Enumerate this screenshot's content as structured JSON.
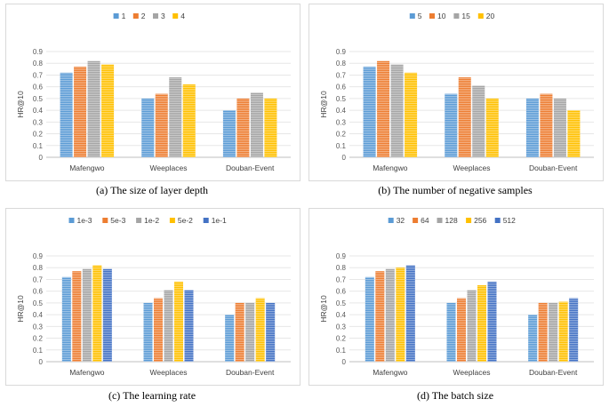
{
  "colors": {
    "palette": [
      "#5b9bd5",
      "#ed7d31",
      "#a5a5a5",
      "#ffc000",
      "#4472c4"
    ],
    "grid": "#e7e7e7",
    "axis": "#bfbfbf"
  },
  "chart_data": [
    {
      "type": "bar",
      "id": "a",
      "caption": "(a)  The size of layer depth",
      "ylabel": "HR@10",
      "xlabel": "",
      "ylim": [
        0,
        0.9
      ],
      "yticks": [
        "0",
        "0.1",
        "0.2",
        "0.3",
        "0.4",
        "0.5",
        "0.6",
        "0.7",
        "0.8",
        "0.9"
      ],
      "grid": true,
      "legend": "top-center",
      "categories": [
        "Mafengwo",
        "Weeplaces",
        "Douban-Event"
      ],
      "series": [
        {
          "name": "1",
          "values": [
            0.72,
            0.5,
            0.4
          ]
        },
        {
          "name": "2",
          "values": [
            0.77,
            0.54,
            0.5
          ]
        },
        {
          "name": "3",
          "values": [
            0.82,
            0.68,
            0.55
          ]
        },
        {
          "name": "4",
          "values": [
            0.79,
            0.62,
            0.5
          ]
        }
      ]
    },
    {
      "type": "bar",
      "id": "b",
      "caption": "(b)  The number of negative samples",
      "ylabel": "HR@10",
      "xlabel": "",
      "ylim": [
        0,
        0.9
      ],
      "yticks": [
        "0",
        "0.1",
        "0.2",
        "0.3",
        "0.4",
        "0.5",
        "0.6",
        "0.7",
        "0.8",
        "0.9"
      ],
      "grid": true,
      "legend": "top-center",
      "categories": [
        "Mafengwo",
        "Weeplaces",
        "Douban-Event"
      ],
      "series": [
        {
          "name": "5",
          "values": [
            0.77,
            0.54,
            0.5
          ]
        },
        {
          "name": "10",
          "values": [
            0.82,
            0.68,
            0.54
          ]
        },
        {
          "name": "15",
          "values": [
            0.79,
            0.61,
            0.5
          ]
        },
        {
          "name": "20",
          "values": [
            0.72,
            0.5,
            0.4
          ]
        }
      ]
    },
    {
      "type": "bar",
      "id": "c",
      "caption": "(c)  The learning rate",
      "ylabel": "HR@10",
      "xlabel": "",
      "ylim": [
        0,
        0.9
      ],
      "yticks": [
        "0",
        "0.1",
        "0.2",
        "0.3",
        "0.4",
        "0.5",
        "0.6",
        "0.7",
        "0.8",
        "0.9"
      ],
      "grid": true,
      "legend": "top-center",
      "categories": [
        "Mafengwo",
        "Weeplaces",
        "Douban-Event"
      ],
      "series": [
        {
          "name": "1e-3",
          "values": [
            0.72,
            0.5,
            0.4
          ]
        },
        {
          "name": "5e-3",
          "values": [
            0.77,
            0.54,
            0.5
          ]
        },
        {
          "name": "1e-2",
          "values": [
            0.79,
            0.61,
            0.5
          ]
        },
        {
          "name": "5e-2",
          "values": [
            0.82,
            0.68,
            0.54
          ]
        },
        {
          "name": "1e-1",
          "values": [
            0.79,
            0.61,
            0.5
          ]
        }
      ]
    },
    {
      "type": "bar",
      "id": "d",
      "caption": "(d)  The batch size",
      "ylabel": "HR@10",
      "xlabel": "",
      "ylim": [
        0,
        0.9
      ],
      "yticks": [
        "0",
        "0.1",
        "0.2",
        "0.3",
        "0.4",
        "0.5",
        "0.6",
        "0.7",
        "0.8",
        "0.9"
      ],
      "grid": true,
      "legend": "top-center",
      "categories": [
        "Mafengwo",
        "Weeplaces",
        "Douban-Event"
      ],
      "series": [
        {
          "name": "32",
          "values": [
            0.72,
            0.5,
            0.4
          ]
        },
        {
          "name": "64",
          "values": [
            0.77,
            0.54,
            0.5
          ]
        },
        {
          "name": "128",
          "values": [
            0.79,
            0.61,
            0.5
          ]
        },
        {
          "name": "256",
          "values": [
            0.8,
            0.65,
            0.51
          ]
        },
        {
          "name": "512",
          "values": [
            0.82,
            0.68,
            0.54
          ]
        }
      ]
    }
  ]
}
